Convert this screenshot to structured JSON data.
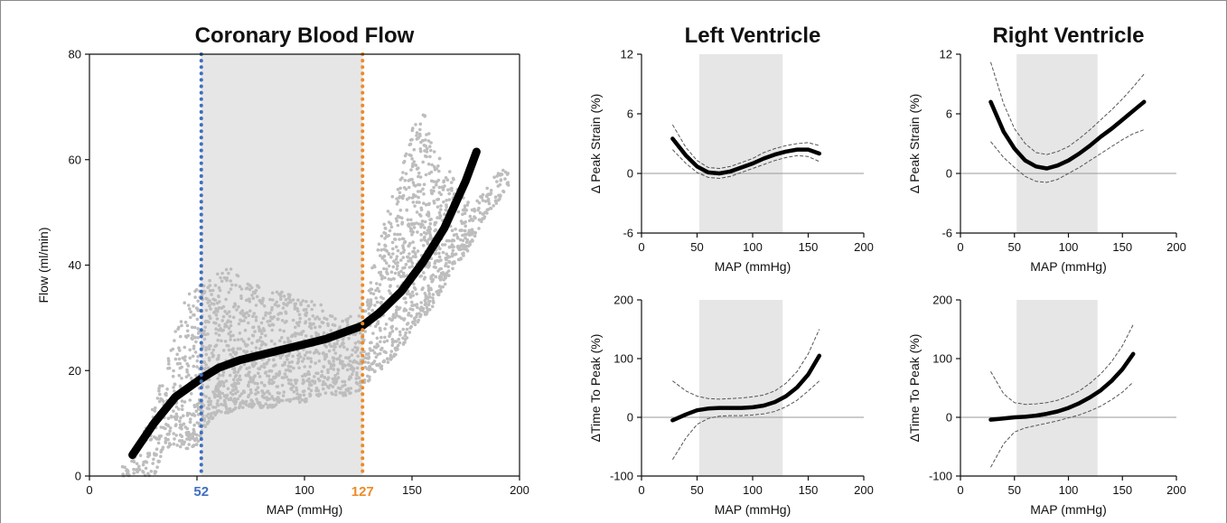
{
  "colors": {
    "curve": "#000000",
    "ci": "#555555",
    "scatter": "#bdbdbd",
    "shade": "#e6e6e6",
    "blue": "#3f6fc0",
    "orange": "#ec8b2a",
    "zero": "#9a9a9a"
  },
  "chart_data": [
    {
      "id": "cbf",
      "type": "scatter",
      "title": "Coronary Blood Flow",
      "xlabel": "MAP (mmHg)",
      "ylabel": "Flow (ml/min)",
      "xlim": [
        0,
        200
      ],
      "ylim": [
        0,
        80
      ],
      "xticks": [
        0,
        50,
        100,
        150,
        200
      ],
      "xtick_labels": [
        "0",
        "",
        "100",
        "150",
        "200"
      ],
      "yticks": [
        0,
        20,
        40,
        60,
        80
      ],
      "shade": [
        52,
        127
      ],
      "vlines": [
        {
          "x": 52,
          "label": "52",
          "color": "blue"
        },
        {
          "x": 127,
          "label": "127",
          "color": "orange"
        }
      ],
      "fit": {
        "x": [
          20,
          30,
          40,
          52,
          60,
          70,
          80,
          90,
          100,
          110,
          120,
          127,
          135,
          145,
          155,
          165,
          175,
          180
        ],
        "y": [
          4,
          10,
          15,
          18.5,
          20.5,
          22,
          23,
          24,
          25,
          26,
          27.5,
          28.5,
          31,
          35,
          40.5,
          47,
          56,
          61.5
        ]
      },
      "scatter_cloud": {
        "x": [
          15,
          20,
          25,
          30,
          35,
          40,
          45,
          50,
          55,
          60,
          65,
          70,
          75,
          80,
          85,
          90,
          95,
          100,
          105,
          110,
          115,
          120,
          125,
          130,
          135,
          140,
          145,
          150,
          155,
          160,
          165,
          170,
          175,
          180,
          185,
          190,
          195
        ],
        "ylo": [
          0,
          0,
          0,
          0,
          5,
          6,
          5,
          6,
          10,
          12,
          12,
          13,
          13,
          13,
          13,
          14,
          14,
          14,
          15,
          15,
          15,
          15,
          16,
          18,
          20,
          22,
          24,
          28,
          30,
          32,
          36,
          40,
          42,
          46,
          50,
          52,
          55
        ],
        "yhi": [
          2,
          3,
          8,
          14,
          20,
          28,
          34,
          36,
          38,
          40,
          40,
          38,
          37,
          36,
          36,
          35,
          34,
          34,
          33,
          32,
          30,
          30,
          32,
          38,
          45,
          52,
          58,
          66,
          70,
          62,
          60,
          56,
          52,
          52,
          55,
          58,
          58
        ]
      }
    },
    {
      "id": "lv_strain",
      "type": "line",
      "title": "Left Ventricle",
      "xlabel": "MAP (mmHg)",
      "ylabel": "Δ Peak Strain (%)",
      "xlim": [
        0,
        200
      ],
      "ylim": [
        -6,
        12
      ],
      "xticks": [
        0,
        50,
        100,
        150,
        200
      ],
      "yticks": [
        -6,
        0,
        6,
        12
      ],
      "shade": [
        52,
        127
      ],
      "fit": {
        "x": [
          28,
          40,
          50,
          60,
          70,
          80,
          90,
          100,
          110,
          120,
          130,
          140,
          150,
          160
        ],
        "y": [
          3.5,
          1.8,
          0.7,
          0.1,
          0,
          0.2,
          0.6,
          1.0,
          1.5,
          1.9,
          2.2,
          2.4,
          2.4,
          2.0
        ],
        "lo": [
          2.4,
          1.0,
          0.1,
          -0.4,
          -0.5,
          -0.3,
          0.1,
          0.5,
          0.9,
          1.3,
          1.6,
          1.8,
          1.7,
          1.2
        ],
        "hi": [
          4.9,
          2.6,
          1.3,
          0.6,
          0.5,
          0.7,
          1.1,
          1.5,
          2.1,
          2.5,
          2.8,
          3.0,
          3.1,
          2.8
        ]
      }
    },
    {
      "id": "rv_strain",
      "type": "line",
      "title": "Right Ventricle",
      "xlabel": "MAP (mmHg)",
      "ylabel": "Δ Peak Strain (%)",
      "xlim": [
        0,
        200
      ],
      "ylim": [
        -6,
        12
      ],
      "xticks": [
        0,
        50,
        100,
        150,
        200
      ],
      "yticks": [
        -6,
        0,
        6,
        12
      ],
      "shade": [
        52,
        127
      ],
      "fit": {
        "x": [
          28,
          40,
          50,
          60,
          70,
          80,
          90,
          100,
          110,
          120,
          130,
          140,
          150,
          160,
          170
        ],
        "y": [
          7.2,
          4.2,
          2.5,
          1.3,
          0.7,
          0.5,
          0.8,
          1.3,
          2.0,
          2.8,
          3.7,
          4.5,
          5.4,
          6.3,
          7.2
        ],
        "lo": [
          3.2,
          1.6,
          0.6,
          -0.3,
          -0.8,
          -0.9,
          -0.6,
          0.0,
          0.6,
          1.3,
          2.0,
          2.7,
          3.4,
          4.0,
          4.4
        ],
        "hi": [
          11.2,
          7.0,
          4.5,
          3.0,
          2.1,
          1.9,
          2.2,
          2.7,
          3.5,
          4.4,
          5.4,
          6.4,
          7.5,
          8.7,
          10.0
        ]
      }
    },
    {
      "id": "lv_ttp",
      "type": "line",
      "title": "",
      "xlabel": "MAP (mmHg)",
      "ylabel": "ΔTime To Peak (%)",
      "xlim": [
        0,
        200
      ],
      "ylim": [
        -100,
        200
      ],
      "xticks": [
        0,
        50,
        100,
        150,
        200
      ],
      "yticks": [
        -100,
        0,
        100,
        200
      ],
      "shade": [
        52,
        127
      ],
      "fit": {
        "x": [
          28,
          40,
          50,
          60,
          70,
          80,
          90,
          100,
          110,
          120,
          130,
          140,
          150,
          160
        ],
        "y": [
          -5,
          5,
          12,
          15,
          16,
          16,
          16,
          17,
          20,
          26,
          36,
          51,
          73,
          105
        ],
        "lo": [
          -72,
          -35,
          -12,
          -2,
          2,
          3,
          3,
          4,
          6,
          10,
          18,
          29,
          45,
          62
        ],
        "hi": [
          62,
          45,
          36,
          32,
          31,
          32,
          33,
          35,
          38,
          45,
          58,
          78,
          108,
          150
        ]
      }
    },
    {
      "id": "rv_ttp",
      "type": "line",
      "title": "",
      "xlabel": "MAP (mmHg)",
      "ylabel": "ΔTime To Peak (%)",
      "xlim": [
        0,
        200
      ],
      "ylim": [
        -100,
        200
      ],
      "xticks": [
        0,
        50,
        100,
        150,
        200
      ],
      "yticks": [
        -100,
        0,
        100,
        200
      ],
      "shade": [
        52,
        127
      ],
      "fit": {
        "x": [
          28,
          40,
          50,
          60,
          70,
          80,
          90,
          100,
          110,
          120,
          130,
          140,
          150,
          160
        ],
        "y": [
          -4,
          -2,
          0,
          1,
          3,
          6,
          10,
          16,
          24,
          34,
          46,
          62,
          82,
          108
        ],
        "lo": [
          -85,
          -45,
          -25,
          -18,
          -14,
          -10,
          -6,
          -1,
          4,
          11,
          19,
          30,
          43,
          60
        ],
        "hi": [
          78,
          40,
          25,
          22,
          23,
          25,
          29,
          36,
          45,
          58,
          74,
          95,
          122,
          158
        ]
      }
    }
  ]
}
